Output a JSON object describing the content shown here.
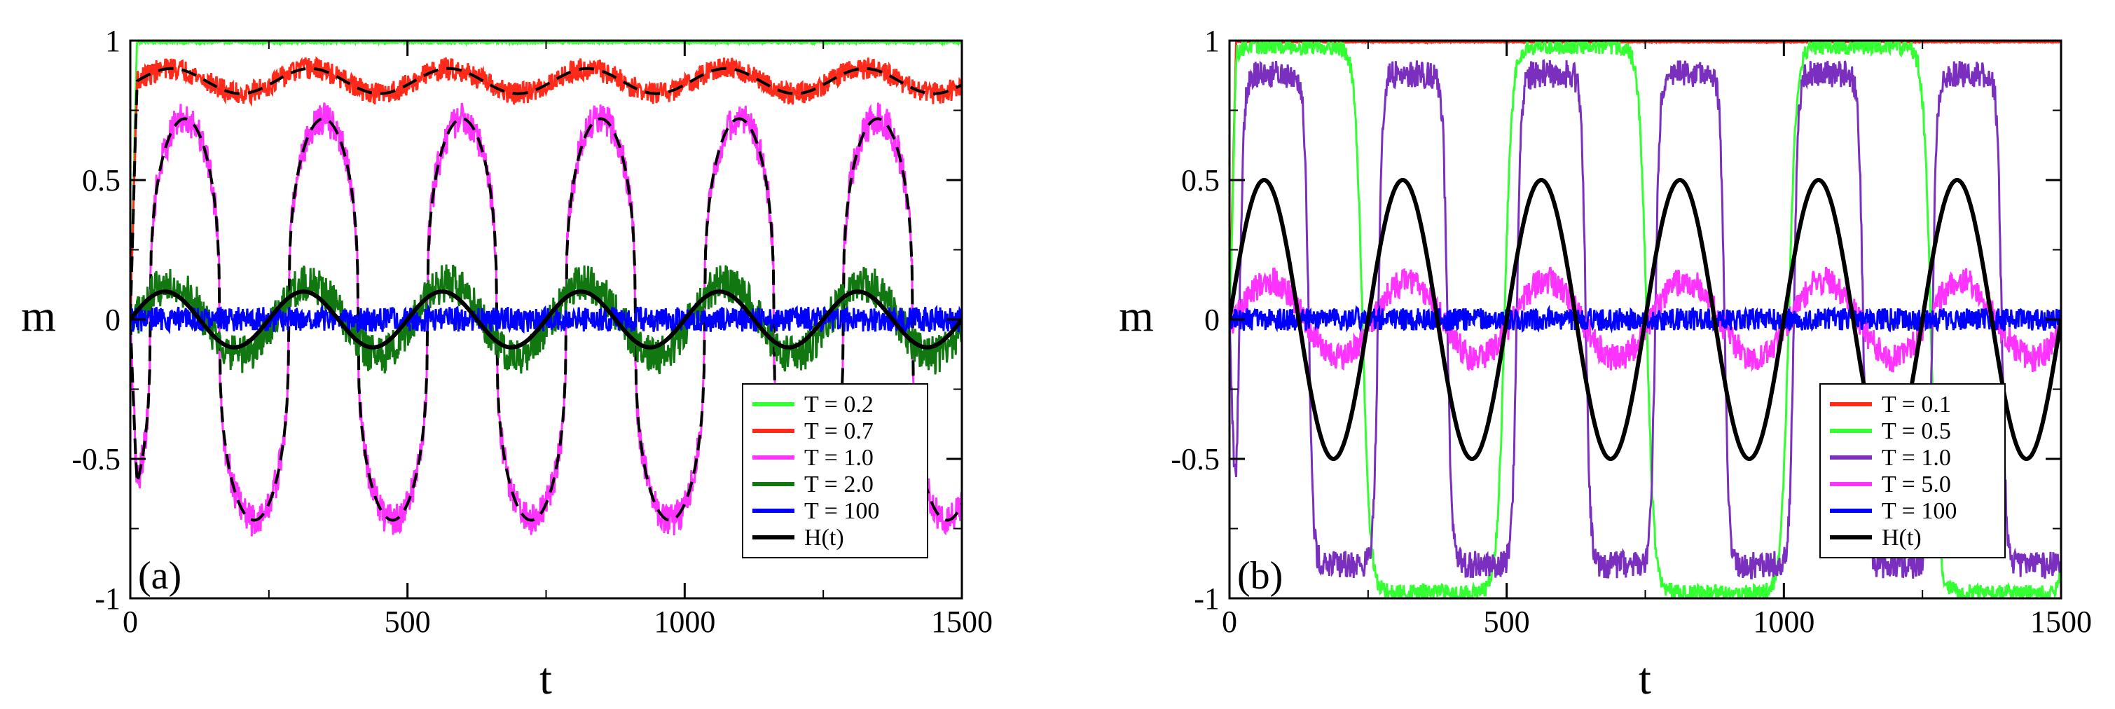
{
  "figure": {
    "panels": [
      "panel_a",
      "panel_b"
    ]
  },
  "chart_data": [
    {
      "type": "line",
      "panel_label": "(a)",
      "xlabel": "t",
      "ylabel": "m",
      "xlim": [
        0,
        1500
      ],
      "ylim": [
        -1,
        1
      ],
      "x_ticks": [
        0,
        500,
        1000,
        1500
      ],
      "x_tick_labels": [
        "0",
        "500",
        "1000",
        "1500"
      ],
      "y_ticks": [
        -1,
        -0.5,
        0,
        0.5,
        1
      ],
      "y_tick_labels": [
        "-1",
        "-0.5",
        "0",
        "0.5",
        "1"
      ],
      "legend_position": "bottom-right",
      "series": [
        {
          "name": "T = 0.2",
          "color": "#33ff33",
          "kind": "sat",
          "mean": 0.995,
          "amp": 0,
          "noise": 0.004,
          "dashed_fit": false
        },
        {
          "name": "T = 0.7",
          "color": "#ff2a1a",
          "kind": "sat",
          "mean": 0.855,
          "amp": 0.045,
          "noise": 0.04,
          "dashed_fit": true
        },
        {
          "name": "T = 1.0",
          "color": "#ff33ff",
          "kind": "hyst",
          "mean": 0,
          "amp": 0.72,
          "noise": 0.06,
          "dashed_fit": true
        },
        {
          "name": "T = 2.0",
          "color": "#117711",
          "kind": "sine",
          "mean": 0,
          "amp": 0.13,
          "noise": 0.07,
          "dashed_fit": false
        },
        {
          "name": "T = 100",
          "color": "#0000ff",
          "kind": "noise",
          "mean": 0,
          "amp": 0,
          "noise": 0.045,
          "dashed_fit": false
        },
        {
          "name": "H(t)",
          "color": "#000000",
          "kind": "field",
          "mean": 0,
          "amp": 0.1,
          "noise": 0,
          "dashed_fit": false
        }
      ],
      "field_period": 250
    },
    {
      "type": "line",
      "panel_label": "(b)",
      "xlabel": "t",
      "ylabel": "m",
      "xlim": [
        0,
        1500
      ],
      "ylim": [
        -1,
        1
      ],
      "x_ticks": [
        0,
        500,
        1000,
        1500
      ],
      "x_tick_labels": [
        "0",
        "500",
        "1000",
        "1500"
      ],
      "y_ticks": [
        -1,
        -0.5,
        0,
        0.5,
        1
      ],
      "y_tick_labels": [
        "-1",
        "-0.5",
        "0",
        "0.5",
        "1"
      ],
      "legend_position": "bottom-right",
      "series": [
        {
          "name": "T = 0.1",
          "color": "#ff2a1a",
          "kind": "sat",
          "mean": 0.995,
          "amp": 0,
          "noise": 0.002,
          "dashed_fit": false
        },
        {
          "name": "T = 0.5",
          "color": "#33ff33",
          "kind": "slowsq",
          "mean": 0,
          "amp": 0.98,
          "noise": 0.03,
          "dashed_fit": false
        },
        {
          "name": "T = 1.0",
          "color": "#7b2fbe",
          "kind": "sq",
          "mean": 0,
          "amp": 0.88,
          "noise": 0.05,
          "dashed_fit": false
        },
        {
          "name": "T = 5.0",
          "color": "#ff33ff",
          "kind": "sine",
          "mean": 0,
          "amp": 0.14,
          "noise": 0.05,
          "dashed_fit": false
        },
        {
          "name": "T = 100",
          "color": "#0000ff",
          "kind": "noise",
          "mean": 0,
          "amp": 0,
          "noise": 0.04,
          "dashed_fit": false
        },
        {
          "name": "H(t)",
          "color": "#000000",
          "kind": "field",
          "mean": 0,
          "amp": 0.5,
          "noise": 0,
          "dashed_fit": false
        }
      ],
      "field_period": 250
    }
  ]
}
